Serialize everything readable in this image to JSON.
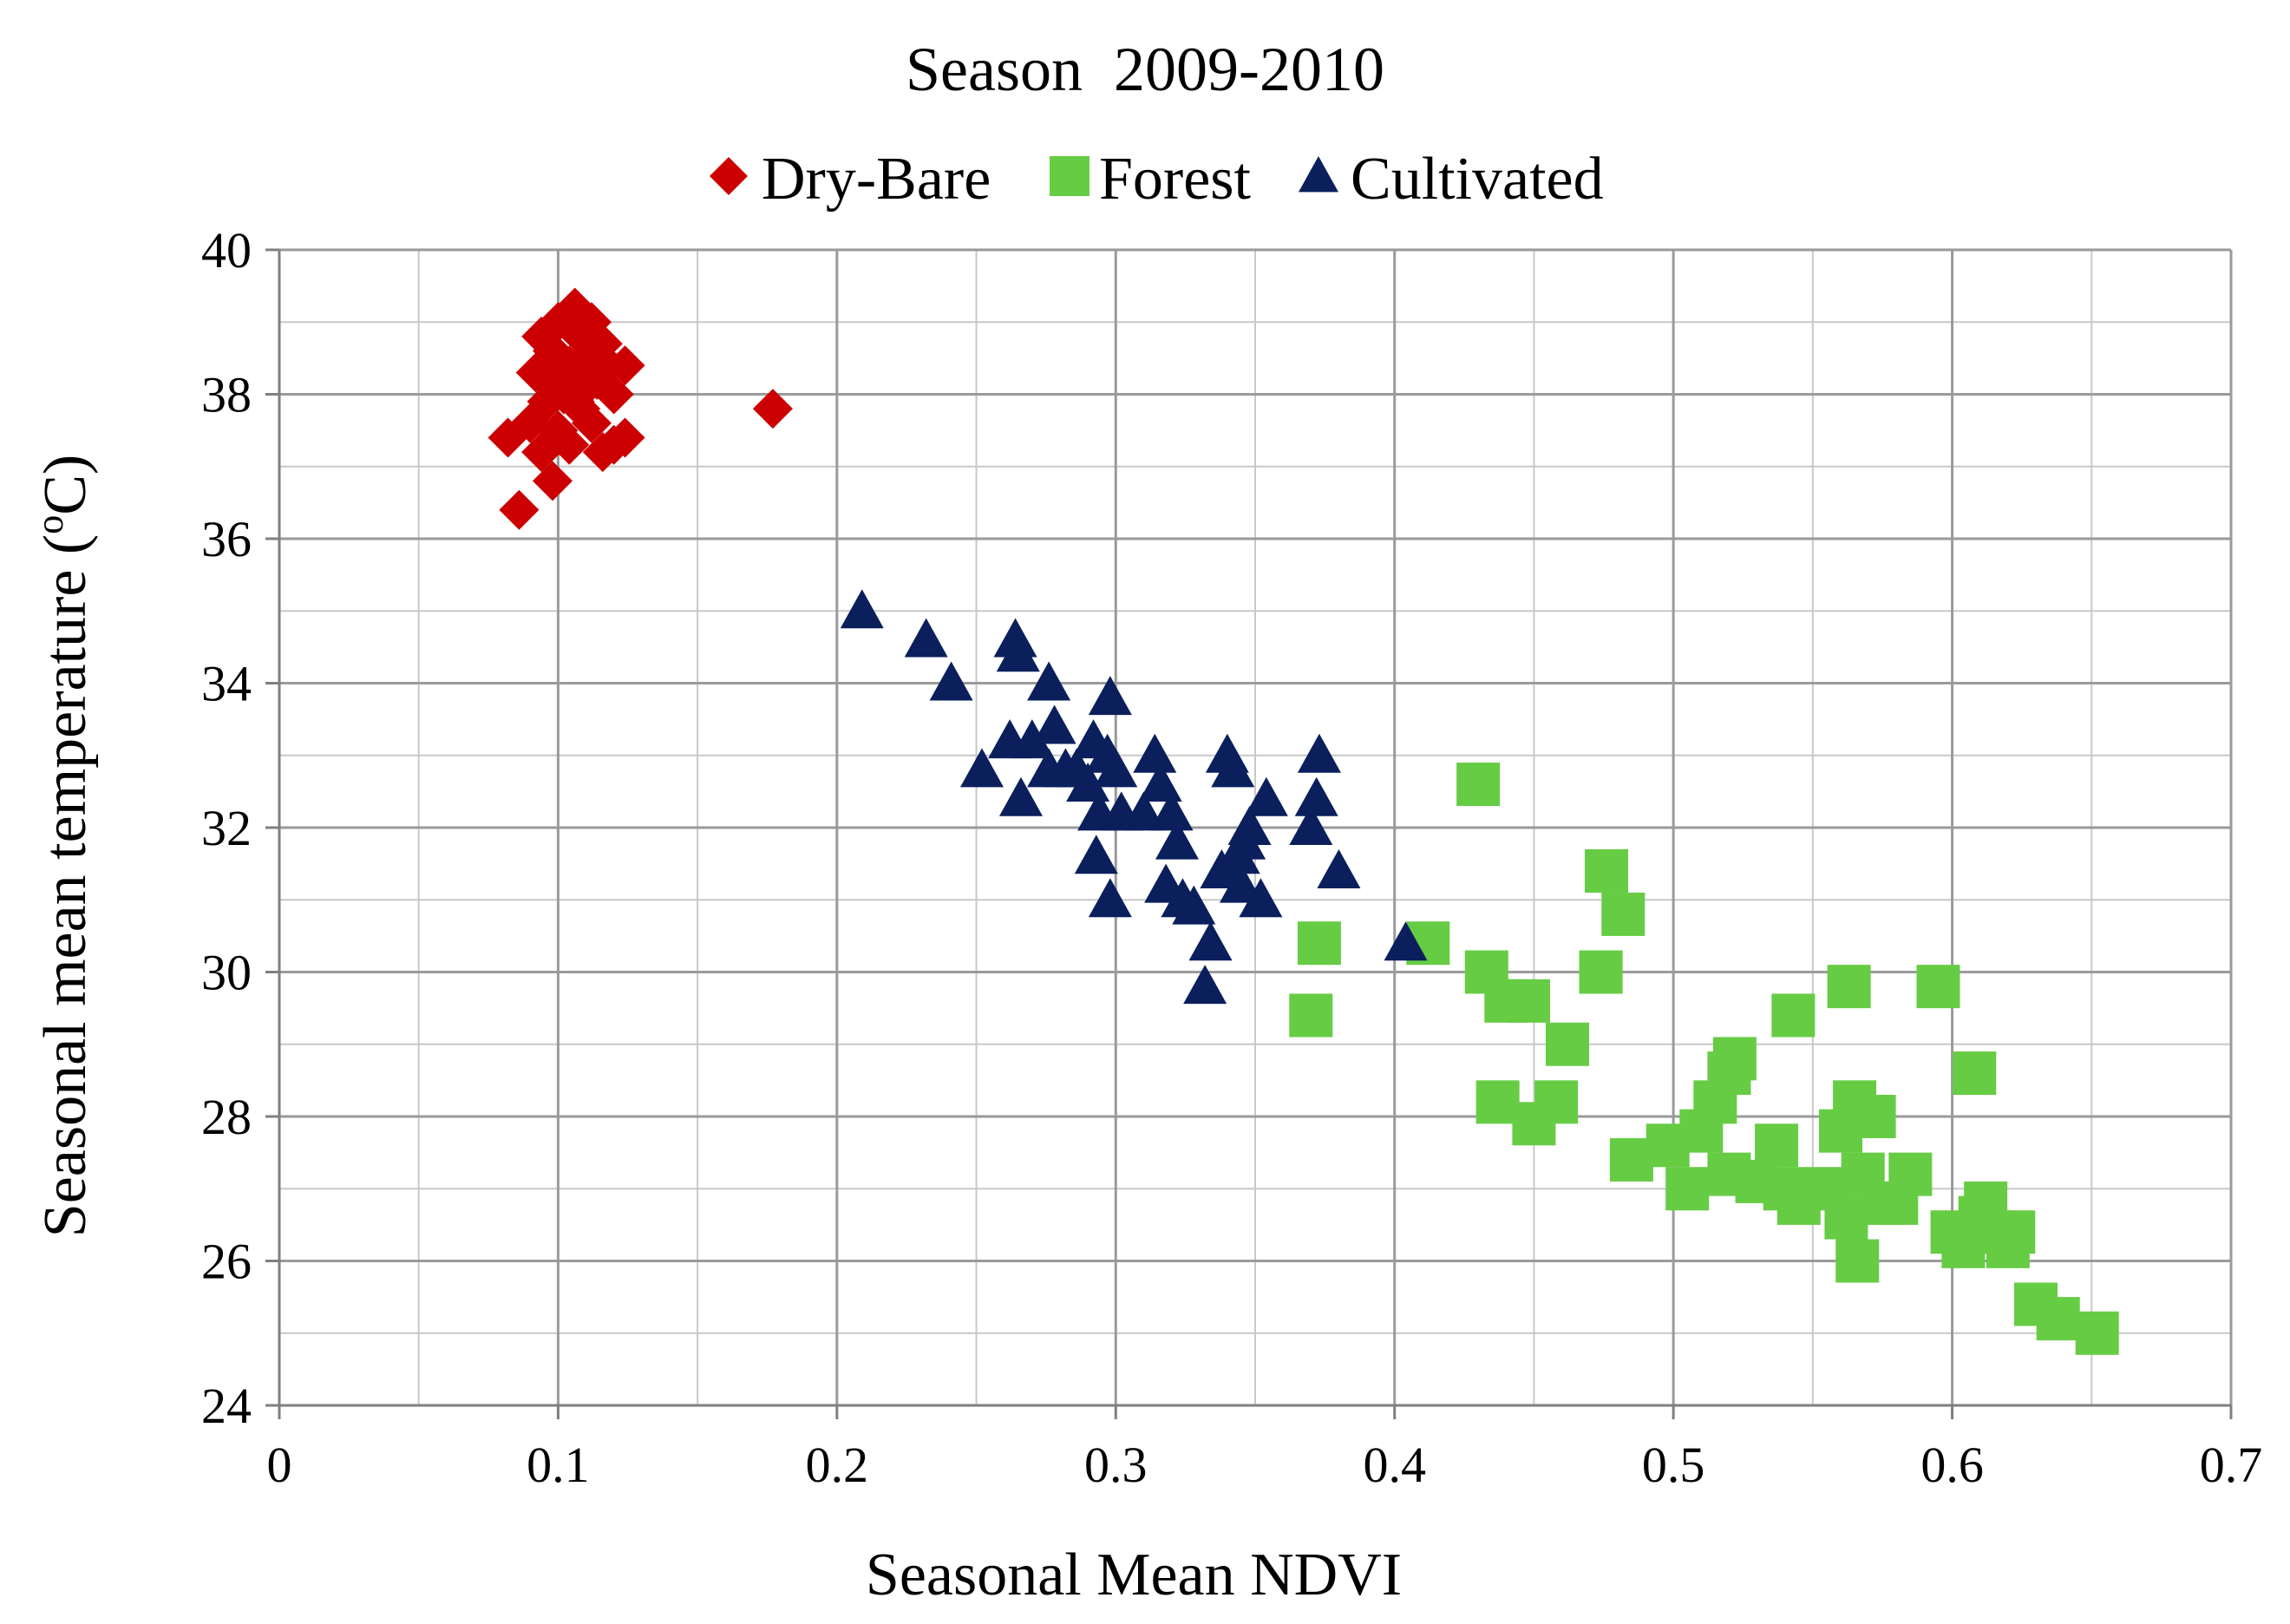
{
  "chart_data": {
    "type": "scatter",
    "title": "Season  2009-2010",
    "xlabel": "Seasonal Mean NDVI",
    "ylabel": "Seasonal mean temperature (°C)",
    "ylabel_parts": {
      "before": "Seasonal mean temperature (",
      "sup": "o",
      "after": "C)"
    },
    "xlim": [
      0,
      0.7
    ],
    "ylim": [
      24,
      40
    ],
    "xticks": [
      0,
      0.1,
      0.2,
      0.3,
      0.4,
      0.5,
      0.6,
      0.7
    ],
    "xtick_labels": [
      "0",
      "0.1",
      "0.2",
      "0.3",
      "0.4",
      "0.5",
      "0.6",
      "0.7"
    ],
    "yticks": [
      24,
      26,
      28,
      30,
      32,
      34,
      36,
      38,
      40
    ],
    "ytick_labels": [
      "24",
      "26",
      "28",
      "30",
      "32",
      "34",
      "36",
      "38",
      "40"
    ],
    "grid": true,
    "legend_position": "top",
    "series": [
      {
        "name": "Dry-Bare",
        "marker": "diamond",
        "color": "#cc0000",
        "points": [
          [
            0.086,
            36.4
          ],
          [
            0.098,
            36.8
          ],
          [
            0.082,
            37.4
          ],
          [
            0.09,
            37.6
          ],
          [
            0.094,
            37.2
          ],
          [
            0.096,
            37.9
          ],
          [
            0.1,
            37.5
          ],
          [
            0.102,
            38.0
          ],
          [
            0.104,
            38.4
          ],
          [
            0.092,
            38.3
          ],
          [
            0.094,
            38.8
          ],
          [
            0.098,
            38.6
          ],
          [
            0.1,
            39.0
          ],
          [
            0.106,
            39.2
          ],
          [
            0.108,
            38.8
          ],
          [
            0.11,
            38.5
          ],
          [
            0.112,
            39.0
          ],
          [
            0.114,
            38.2
          ],
          [
            0.108,
            37.8
          ],
          [
            0.112,
            37.6
          ],
          [
            0.116,
            38.7
          ],
          [
            0.118,
            38.4
          ],
          [
            0.12,
            38.0
          ],
          [
            0.116,
            37.2
          ],
          [
            0.12,
            37.3
          ],
          [
            0.124,
            37.4
          ],
          [
            0.124,
            38.4
          ],
          [
            0.104,
            37.3
          ],
          [
            0.106,
            37.9
          ],
          [
            0.096,
            38.2
          ],
          [
            0.11,
            38.1
          ],
          [
            0.177,
            37.8
          ]
        ]
      },
      {
        "name": "Forest",
        "marker": "square",
        "color": "#66cc44",
        "points": [
          [
            0.37,
            29.4
          ],
          [
            0.373,
            30.4
          ],
          [
            0.412,
            30.4
          ],
          [
            0.43,
            32.6
          ],
          [
            0.433,
            30.0
          ],
          [
            0.44,
            29.6
          ],
          [
            0.448,
            29.6
          ],
          [
            0.437,
            28.2
          ],
          [
            0.45,
            27.9
          ],
          [
            0.458,
            28.2
          ],
          [
            0.462,
            29.0
          ],
          [
            0.474,
            30.0
          ],
          [
            0.476,
            31.4
          ],
          [
            0.482,
            30.8
          ],
          [
            0.485,
            27.4
          ],
          [
            0.498,
            27.6
          ],
          [
            0.505,
            27.0
          ],
          [
            0.51,
            27.8
          ],
          [
            0.515,
            28.2
          ],
          [
            0.52,
            28.6
          ],
          [
            0.522,
            28.8
          ],
          [
            0.52,
            27.2
          ],
          [
            0.53,
            27.1
          ],
          [
            0.537,
            27.6
          ],
          [
            0.54,
            27.0
          ],
          [
            0.545,
            26.8
          ],
          [
            0.543,
            29.4
          ],
          [
            0.555,
            27.0
          ],
          [
            0.56,
            27.8
          ],
          [
            0.563,
            29.8
          ],
          [
            0.565,
            28.2
          ],
          [
            0.562,
            26.6
          ],
          [
            0.566,
            26.0
          ],
          [
            0.568,
            27.2
          ],
          [
            0.572,
            28.0
          ],
          [
            0.575,
            26.8
          ],
          [
            0.58,
            26.8
          ],
          [
            0.585,
            27.2
          ],
          [
            0.595,
            29.8
          ],
          [
            0.6,
            26.4
          ],
          [
            0.604,
            26.2
          ],
          [
            0.608,
            28.6
          ],
          [
            0.61,
            26.6
          ],
          [
            0.612,
            26.8
          ],
          [
            0.615,
            26.4
          ],
          [
            0.62,
            26.2
          ],
          [
            0.622,
            26.4
          ],
          [
            0.63,
            25.4
          ],
          [
            0.638,
            25.2
          ],
          [
            0.652,
            25.0
          ]
        ]
      },
      {
        "name": "Cultivated",
        "marker": "triangle",
        "color": "#0a1f5c",
        "points": [
          [
            0.209,
            35.0
          ],
          [
            0.232,
            34.6
          ],
          [
            0.241,
            34.0
          ],
          [
            0.252,
            32.8
          ],
          [
            0.262,
            33.2
          ],
          [
            0.264,
            34.6
          ],
          [
            0.265,
            34.4
          ],
          [
            0.266,
            32.4
          ],
          [
            0.27,
            33.2
          ],
          [
            0.276,
            34.0
          ],
          [
            0.276,
            32.8
          ],
          [
            0.278,
            33.4
          ],
          [
            0.282,
            32.8
          ],
          [
            0.286,
            32.8
          ],
          [
            0.29,
            32.6
          ],
          [
            0.292,
            33.2
          ],
          [
            0.293,
            31.6
          ],
          [
            0.294,
            32.2
          ],
          [
            0.297,
            33.0
          ],
          [
            0.298,
            33.8
          ],
          [
            0.298,
            31.0
          ],
          [
            0.3,
            32.8
          ],
          [
            0.302,
            32.2
          ],
          [
            0.31,
            32.2
          ],
          [
            0.314,
            33.0
          ],
          [
            0.316,
            32.6
          ],
          [
            0.318,
            31.2
          ],
          [
            0.32,
            32.2
          ],
          [
            0.322,
            31.8
          ],
          [
            0.324,
            31.0
          ],
          [
            0.328,
            30.9
          ],
          [
            0.332,
            29.8
          ],
          [
            0.334,
            30.4
          ],
          [
            0.338,
            31.4
          ],
          [
            0.34,
            33.0
          ],
          [
            0.342,
            32.8
          ],
          [
            0.344,
            31.6
          ],
          [
            0.345,
            31.2
          ],
          [
            0.346,
            31.8
          ],
          [
            0.348,
            32.0
          ],
          [
            0.352,
            31.0
          ],
          [
            0.354,
            32.4
          ],
          [
            0.37,
            32.0
          ],
          [
            0.372,
            32.4
          ],
          [
            0.373,
            33.0
          ],
          [
            0.38,
            31.4
          ],
          [
            0.404,
            30.4
          ]
        ]
      }
    ]
  }
}
